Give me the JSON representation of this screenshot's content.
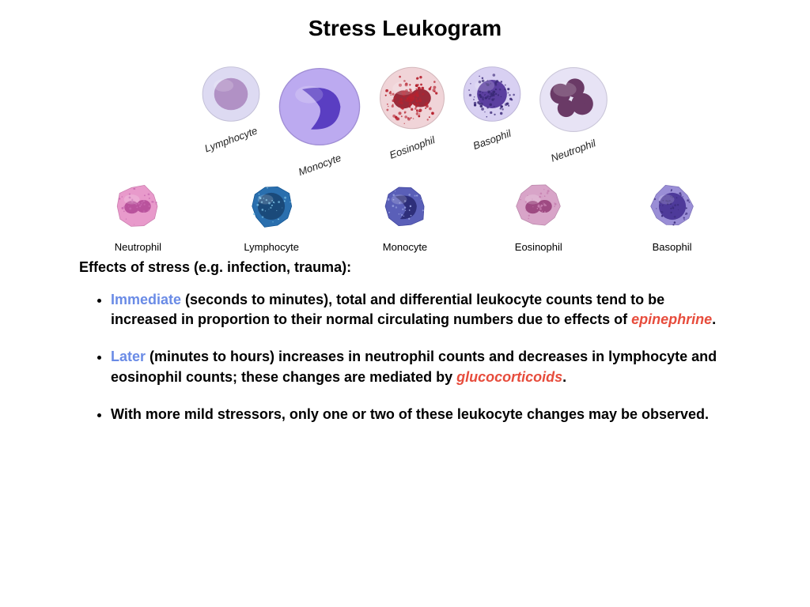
{
  "title": "Stress Leukogram",
  "row1": [
    {
      "label": "Lymphocyte",
      "size": 78,
      "cytoplasm": "#dcd9f2",
      "nucleus": "#b191c5",
      "nx": 0.5,
      "ny": 0.5,
      "nr": 0.62,
      "granules": 0
    },
    {
      "label": "Monocyte",
      "size": 110,
      "cytoplasm": "#b9a6f0",
      "nucleus": "#5a3ec2",
      "nx": 0.46,
      "ny": 0.52,
      "nr": 0.7,
      "granules": 0,
      "kidney": true
    },
    {
      "label": "Eosinophil",
      "size": 88,
      "cytoplasm": "#f0d2d6",
      "nucleus": "#9a2b3a",
      "nx": 0.5,
      "ny": 0.5,
      "nr": 0.58,
      "granules": 140,
      "granColor": "#b6222f",
      "bilobed": true
    },
    {
      "label": "Basophil",
      "size": 78,
      "cytoplasm": "#d6cef2",
      "nucleus": "#5b3fa0",
      "nx": 0.5,
      "ny": 0.5,
      "nr": 0.55,
      "granules": 90,
      "granColor": "#3b2a78"
    },
    {
      "label": "Neutrophil",
      "size": 92,
      "cytoplasm": "#e6e2f5",
      "nucleus": "#6a3a66",
      "nx": 0.5,
      "ny": 0.5,
      "nr": 0.3,
      "granules": 0,
      "multilobed": true
    }
  ],
  "row2": [
    {
      "label": "Neutrophil",
      "size": 62,
      "cytoplasm": "#e89acb",
      "nucleus": "#b9529c",
      "granules": 35,
      "granColor": "#c86ab0",
      "bilobed": true
    },
    {
      "label": "Lymphocyte",
      "size": 62,
      "cytoplasm": "#2a6fae",
      "nucleus": "#1a4a7a",
      "granules": 30,
      "granColor": "#7fc5e8",
      "round": true
    },
    {
      "label": "Monocyte",
      "size": 62,
      "cytoplasm": "#5a5fb8",
      "nucleus": "#2e2f7a",
      "granules": 25,
      "granColor": "#9aa3e0",
      "kidney": true
    },
    {
      "label": "Eosinophil",
      "size": 62,
      "cytoplasm": "#d8a4c8",
      "nucleus": "#9e4a82",
      "granules": 35,
      "granColor": "#c77fb0",
      "bilobed": true
    },
    {
      "label": "Basophil",
      "size": 62,
      "cytoplasm": "#9a8ed6",
      "nucleus": "#4e3a9a",
      "granules": 45,
      "granColor": "#3a2b7a",
      "round": true
    }
  ],
  "effects_header": "Effects of stress (e.g. infection, trauma):",
  "bullets": [
    {
      "lead": "Immediate",
      "lead_color": "blue",
      "text_before": " (seconds to minutes), total and differential leukocyte counts tend to be increased in proportion to their normal circulating numbers due to effects of ",
      "keyword": "epinephrine",
      "kw_color": "red",
      "text_after": "."
    },
    {
      "lead": "Later",
      "lead_color": "blue",
      "text_before": " (minutes to hours) increases in neutrophil counts and decreases in lymphocyte and eosinophil counts; these changes are mediated by ",
      "keyword": "glucocorticoids",
      "kw_color": "red",
      "text_after": "."
    },
    {
      "lead": "",
      "lead_color": "",
      "text_before": "With more mild stressors, only one or two of these leukocyte changes may be observed.",
      "keyword": "",
      "kw_color": "",
      "text_after": ""
    }
  ],
  "colors": {
    "blue_keyword": "#6a8be6",
    "red_keyword": "#e74c3c",
    "text": "#000000",
    "background": "#ffffff"
  },
  "typography": {
    "title_fontsize": 28,
    "body_fontsize": 18,
    "cell_label_fontsize": 13,
    "font_family": "Arial"
  }
}
